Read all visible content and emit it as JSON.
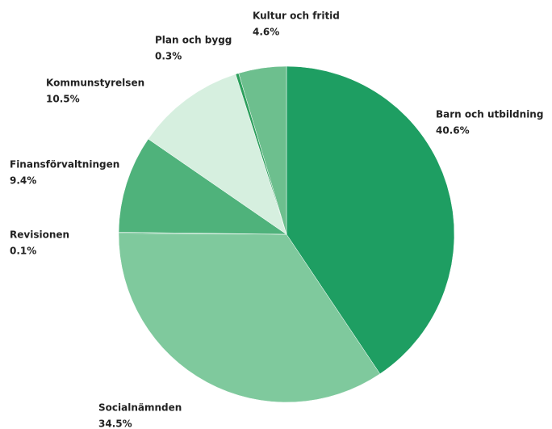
{
  "chart_data": {
    "type": "pie",
    "categories": [
      "Barn och utbildning",
      "Socialnämnden",
      "Revisionen",
      "Finansförvaltningen",
      "Kommunstyrelsen",
      "Plan och bygg",
      "Kultur och fritid"
    ],
    "values": [
      40.6,
      34.5,
      0.1,
      9.4,
      10.5,
      0.3,
      4.6
    ],
    "value_labels": [
      "40.6%",
      "34.5%",
      "0.1%",
      "9.4%",
      "10.5%",
      "0.3%",
      "4.6%"
    ],
    "colors": [
      "#1e9e62",
      "#7fc99d",
      "#3aa86d",
      "#4fb27b",
      "#d6efdf",
      "#2c9f5c",
      "#6dbf8e"
    ]
  }
}
